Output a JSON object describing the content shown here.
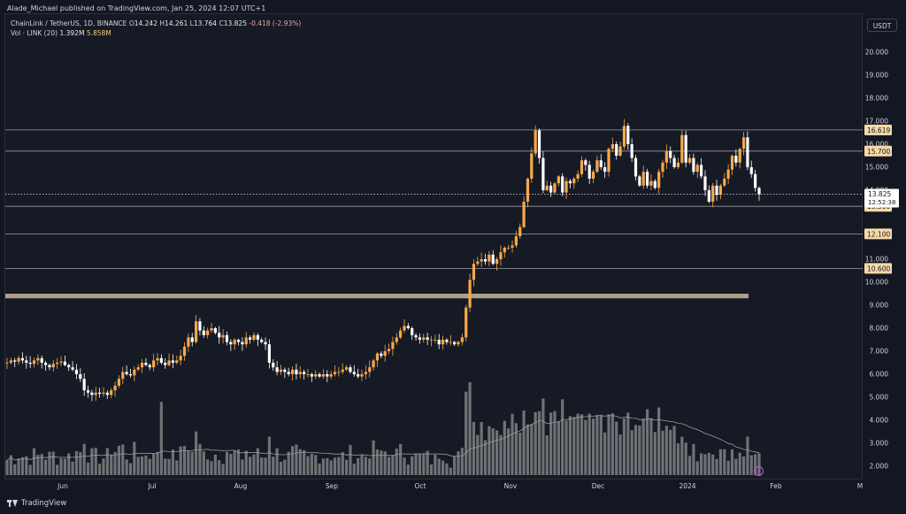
{
  "header": {
    "publisher_line": "Alade_Michael published on TradingView.com, Jan 25, 2024 12:07 UTC+1"
  },
  "legend": {
    "symbol": "ChainLink / TetherUS, 1D, BINANCE",
    "open_label": "O",
    "open": "14.242",
    "high_label": "H",
    "high": "14.261",
    "low_label": "L",
    "low": "13.764",
    "close_label": "C",
    "close": "13.825",
    "change": "-0.418 (-2.93%)",
    "volume_label": "Vol · LINK (20)",
    "volume": "1.392M",
    "volume_ma": "5.858M"
  },
  "toolbar": {
    "currency_button": "USDT"
  },
  "price_axis": {
    "ticks": [
      "20.000",
      "19.000",
      "18.000",
      "17.000",
      "16.000",
      "15.000",
      "14.000",
      "12.000",
      "11.000",
      "10.000",
      "9.000",
      "8.000",
      "7.000",
      "6.000",
      "5.000",
      "4.000",
      "3.000",
      "2.000"
    ],
    "last_price": "13.825",
    "countdown": "12:52:38"
  },
  "levels": {
    "resistance": [
      {
        "label": "16.619",
        "price": 16.619
      },
      {
        "label": "15.700",
        "price": 15.7
      },
      {
        "label": "13.300",
        "price": 13.3
      },
      {
        "label": "12.100",
        "price": 12.1
      },
      {
        "label": "10.600",
        "price": 10.6
      }
    ],
    "support_zone": {
      "low": 9.3,
      "high": 9.5
    }
  },
  "time_axis": {
    "labels": [
      "Jun",
      "Jul",
      "Aug",
      "Sep",
      "Oct",
      "Nov",
      "Dec",
      "2024",
      "Feb",
      "M"
    ]
  },
  "footer": {
    "brand": "TradingView"
  },
  "colors": {
    "background": "#161a25",
    "up_candle": "#f7a94a",
    "down_candle": "#ffffff",
    "volume_bar": "#8f8f8f",
    "level_line": "#9a9ca3",
    "level_label_bg": "#f7d9a8",
    "zone": "#c9b99a",
    "accent": "#b565d9"
  },
  "chart_data": {
    "type": "candlestick",
    "title": "ChainLink / TetherUS, 1D, BINANCE",
    "ylim": [
      1.5,
      21.0
    ],
    "x_range": [
      "2023-05-16",
      "2024-03-04"
    ],
    "last_close": 13.825,
    "closes": [
      6.5,
      6.6,
      6.55,
      6.7,
      6.6,
      6.5,
      6.45,
      6.6,
      6.7,
      6.5,
      6.4,
      6.3,
      6.45,
      6.5,
      6.55,
      6.4,
      6.3,
      6.2,
      6.0,
      5.8,
      5.3,
      5.2,
      5.1,
      5.2,
      5.15,
      5.2,
      5.1,
      5.3,
      5.5,
      5.8,
      6.1,
      6.0,
      5.95,
      6.2,
      6.3,
      6.5,
      6.4,
      6.3,
      6.6,
      6.7,
      6.5,
      6.4,
      6.6,
      6.5,
      6.6,
      6.8,
      7.2,
      7.6,
      7.4,
      8.3,
      7.9,
      7.7,
      7.9,
      8.0,
      7.8,
      7.6,
      7.7,
      7.4,
      7.3,
      7.5,
      7.4,
      7.3,
      7.6,
      7.5,
      7.7,
      7.5,
      7.4,
      7.3,
      6.5,
      6.3,
      6.1,
      6.2,
      6.1,
      6.0,
      6.2,
      6.0,
      6.1,
      6.0,
      6.0,
      5.9,
      6.0,
      5.9,
      6.0,
      5.9,
      6.0,
      6.1,
      6.1,
      6.2,
      6.3,
      6.1,
      6.0,
      5.9,
      6.0,
      6.1,
      6.3,
      6.6,
      6.9,
      6.8,
      7.0,
      7.1,
      7.4,
      7.6,
      7.9,
      8.1,
      8.0,
      7.7,
      7.6,
      7.5,
      7.6,
      7.5,
      7.5,
      7.5,
      7.3,
      7.5,
      7.4,
      7.4,
      7.3,
      7.4,
      7.6,
      8.9,
      10.1,
      10.8,
      10.9,
      11.0,
      10.9,
      11.2,
      10.8,
      11.0,
      11.3,
      11.5,
      11.5,
      11.6,
      12.0,
      12.4,
      13.5,
      14.5,
      15.6,
      16.6,
      15.4,
      14.0,
      14.2,
      13.9,
      14.3,
      14.6,
      13.9,
      14.4,
      14.3,
      14.5,
      14.7,
      15.3,
      15.1,
      14.5,
      14.8,
      15.3,
      15.0,
      14.8,
      15.8,
      16.0,
      15.5,
      15.9,
      16.8,
      16.0,
      15.4,
      14.6,
      14.2,
      14.8,
      14.2,
      14.4,
      14.1,
      14.8,
      15.2,
      15.7,
      15.4,
      15.0,
      15.2,
      16.4,
      15.2,
      15.4,
      14.8,
      15.1,
      14.6,
      14.0,
      13.5,
      14.2,
      13.8,
      14.2,
      14.5,
      14.9,
      15.5,
      15.2,
      15.8,
      16.3,
      15.0,
      14.7,
      14.1,
      13.825
    ]
  }
}
